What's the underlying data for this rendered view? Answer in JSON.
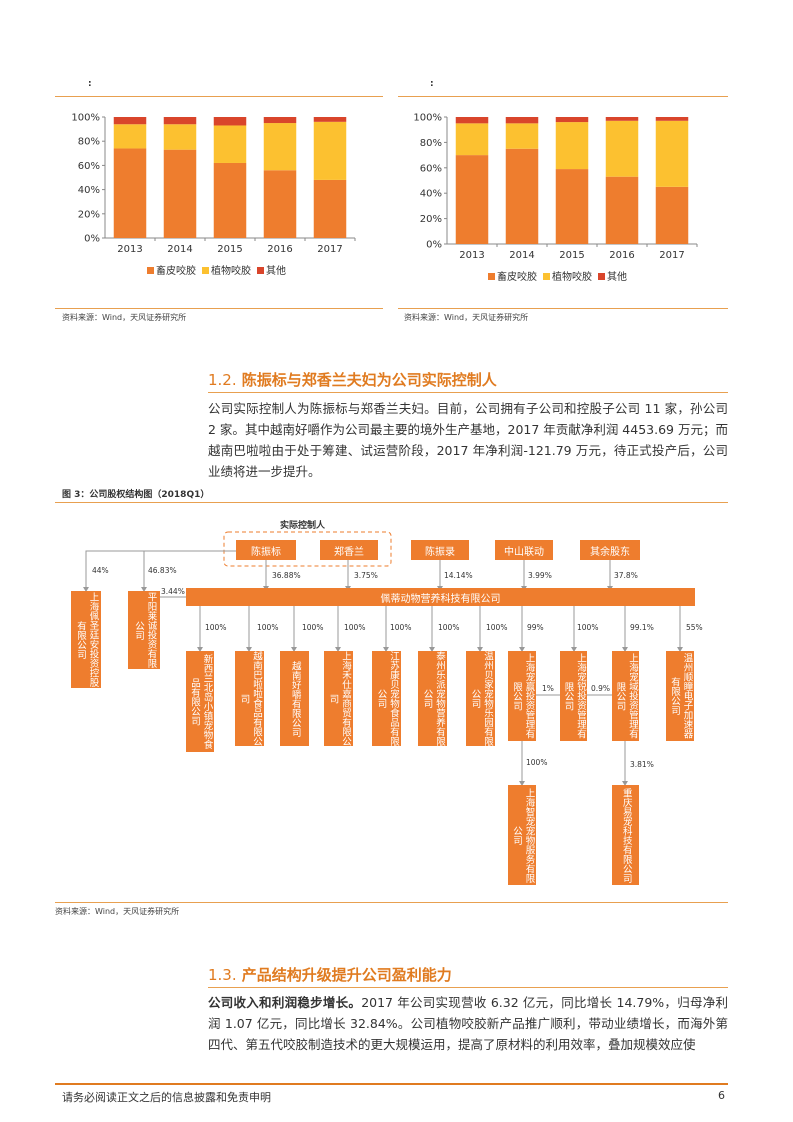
{
  "charts": {
    "left_title": ":",
    "right_title": ":",
    "source": "资料来源：Wind，天风证券研究所"
  },
  "chart_data": [
    {
      "type": "bar",
      "stacked": true,
      "categories": [
        "2013",
        "2014",
        "2015",
        "2016",
        "2017"
      ],
      "series": [
        {
          "name": "畜皮咬胶",
          "color": "#ee7d2e",
          "values": [
            74,
            73,
            62,
            56,
            48
          ]
        },
        {
          "name": "植物咬胶",
          "color": "#fcc130",
          "values": [
            20,
            21,
            31,
            39,
            48
          ]
        },
        {
          "name": "其他",
          "color": "#d9452b",
          "values": [
            6,
            6,
            7,
            5,
            4
          ]
        }
      ],
      "ylim": [
        0,
        100
      ],
      "yticks": [
        "0%",
        "20%",
        "40%",
        "60%",
        "80%",
        "100%"
      ],
      "legend": "bottom"
    },
    {
      "type": "bar",
      "stacked": true,
      "categories": [
        "2013",
        "2014",
        "2015",
        "2016",
        "2017"
      ],
      "series": [
        {
          "name": "畜皮咬胶",
          "color": "#ee7d2e",
          "values": [
            70,
            75,
            59,
            53,
            45
          ]
        },
        {
          "name": "植物咬胶",
          "color": "#fcc130",
          "values": [
            25,
            20,
            37,
            44,
            52
          ]
        },
        {
          "name": "其他",
          "color": "#d9452b",
          "values": [
            5,
            5,
            4,
            3,
            3
          ]
        }
      ],
      "ylim": [
        0,
        100
      ],
      "yticks": [
        "0%",
        "20%",
        "40%",
        "60%",
        "80%",
        "100%"
      ],
      "legend": "bottom"
    }
  ],
  "section12": {
    "num": "1.2.",
    "title": "陈振标与郑香兰夫妇为公司实际控制人",
    "para": "公司实际控制人为陈振标与郑香兰夫妇。目前，公司拥有子公司和控股子公司 11 家，孙公司 2 家。其中越南好嚼作为公司最主要的境外生产基地，2017 年贡献净利润 4453.69 万元；而越南巴啦啦由于处于筹建、试运营阶段，2017 年净利润-121.79 万元，待正式投产后，公司业绩将进一步提升。"
  },
  "figure3": {
    "title": "图 3：公司股权结构图（2018Q1）",
    "controller_label": "实际控制人",
    "top_boxes": [
      "陈振标",
      "郑香兰",
      "陈振录",
      "中山联动",
      "其余股东"
    ],
    "top_pcts": [
      "36.88%",
      "3.75%",
      "14.14%",
      "3.99%",
      "37.8%"
    ],
    "left_pcts": [
      "44%",
      "46.83%",
      "3.44%"
    ],
    "left_boxes": [
      "上海佩圣廷安投资控股有限公司",
      "平阳莱诚投资有限公司"
    ],
    "main_company": "佩蒂动物营养科技有限公司",
    "sub_pcts": [
      "100%",
      "100%",
      "100%",
      "100%",
      "100%",
      "100%",
      "100%",
      "99%",
      "100%",
      "99.1%",
      "55%"
    ],
    "subsidiaries": [
      "新西兰北岛小镇宠物食品有限公司",
      "越南巴啦啦食品有限公司",
      "越南好嚼有限公司",
      "上海禾仕嘉商贸有限公司",
      "江苏康贝宠物食品有限公司",
      "泰州乐派宠物营养有限公司",
      "温州贝家宠物乐园有限公司",
      "上海宠赢投资管理有限公司",
      "上海宠锐投资管理有限公司",
      "上海宠域投资管理有限公司",
      "温州顺瞳电子加速器有限公司"
    ],
    "cross_pcts": [
      "1%",
      "0.9%"
    ],
    "grand_pcts": [
      "100%",
      "3.81%"
    ],
    "grandchildren": [
      "上海智宠宠物服务有限公司",
      "重庆易宠科技有限公司"
    ],
    "source": "资料来源：Wind，天风证券研究所"
  },
  "section13": {
    "num": "1.3.",
    "title": "产品结构升级提升公司盈利能力",
    "lead": "公司收入和利润稳步增长。",
    "para": "2017 年公司实现营收 6.32 亿元，同比增长 14.79%，归母净利润 1.07 亿元，同比增长 32.84%。公司植物咬胶新产品推广顺利，带动业绩增长，而海外第四代、第五代咬胶制造技术的更大规模运用，提高了原材料的利用效率，叠加规模效应使"
  },
  "footer": {
    "disclaimer": "请务必阅读正文之后的信息披露和免责申明",
    "page": "6"
  }
}
